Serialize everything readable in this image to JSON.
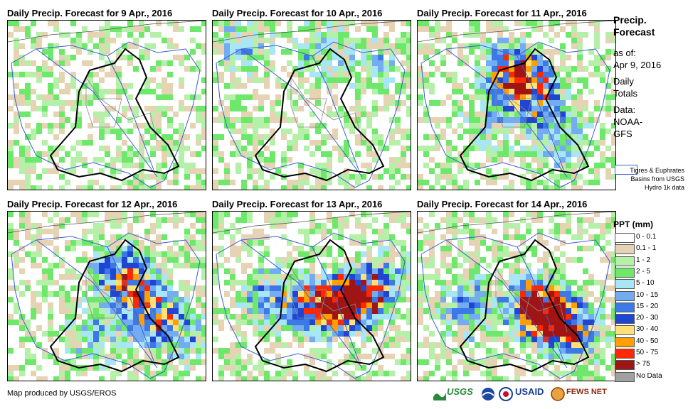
{
  "panels": [
    {
      "title": "Daily Precip. Forecast for 9 Apr., 2016",
      "day_index": 0
    },
    {
      "title": "Daily Precip. Forecast for 10 Apr., 2016",
      "day_index": 1
    },
    {
      "title": "Daily Precip. Forecast for 11 Apr., 2016",
      "day_index": 2
    },
    {
      "title": "Daily Precip. Forecast for 12 Apr., 2016",
      "day_index": 3
    },
    {
      "title": "Daily Precip. Forecast for 13 Apr., 2016",
      "day_index": 4
    },
    {
      "title": "Daily Precip. Forecast for 14 Apr., 2016",
      "day_index": 5
    }
  ],
  "legend": {
    "title_line1": "Precip.",
    "title_line2": "Forecast",
    "asof_line1": "as of:",
    "asof_line2": "Apr 9, 2016",
    "daily_line1": "Daily",
    "daily_line2": "Totals",
    "data_line1": "Data:",
    "data_line2": "NOAA-",
    "data_line3": "GFS",
    "basin_text": "Tigres & Euphrates Basins from USGS Hydro 1k data",
    "ppt_title": "PPT (mm)",
    "classes": [
      {
        "label": "0 - 0.1",
        "color": "#ffffff"
      },
      {
        "label": "0.1 - 1",
        "color": "#e6d3b4"
      },
      {
        "label": "1 - 2",
        "color": "#b5f0a8"
      },
      {
        "label": "2 - 5",
        "color": "#6ee86a"
      },
      {
        "label": "5 - 10",
        "color": "#a9e6f5"
      },
      {
        "label": "10 - 15",
        "color": "#73acf0"
      },
      {
        "label": "15 - 20",
        "color": "#3c78e6"
      },
      {
        "label": "20 - 30",
        "color": "#1e46d2"
      },
      {
        "label": "30 - 40",
        "color": "#ffe178"
      },
      {
        "label": "40 - 50",
        "color": "#ffa000"
      },
      {
        "label": "50 - 75",
        "color": "#ff2800"
      },
      {
        "label": "> 75",
        "color": "#a01414"
      },
      {
        "label": "No Data",
        "color": "#a0a0a0"
      }
    ]
  },
  "footer": {
    "credit": "Map produced by USGS/EROS"
  },
  "logos": {
    "usgs": "USGS",
    "usaid": "USAID",
    "fewsnet": "FEWS NET"
  },
  "colors": {
    "border": "#000000",
    "basin": "#3a5fcf",
    "province": "#8a8a8a"
  }
}
